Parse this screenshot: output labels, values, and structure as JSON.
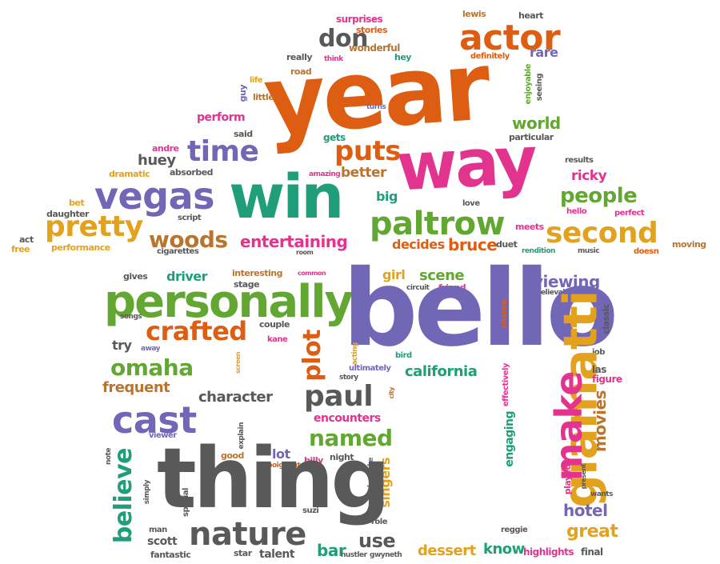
{
  "colors": {
    "orange": "#dd5e13",
    "magenta": "#e2348f",
    "teal": "#1f9e79",
    "purple": "#7266b6",
    "gold": "#e3a21e",
    "gray": "#595959",
    "green": "#62a732",
    "brown": "#b87530"
  },
  "words": {
    "year": "year",
    "bello": "bello",
    "thing": "thing",
    "way": "way",
    "win": "win",
    "personally": "personally",
    "vegas": "vegas",
    "actor": "actor",
    "paltrow": "paltrow",
    "second": "second",
    "giamatti": "giamatti",
    "paul": "paul",
    "cast": "cast",
    "pretty": "pretty",
    "crafted": "crafted",
    "nature": "nature",
    "believe": "believe",
    "time": "time",
    "puts": "puts",
    "woods": "woods",
    "people": "people",
    "named": "named",
    "omaha": "omaha",
    "plot": "plot",
    "make": "make",
    "don": "don",
    "entertaining": "entertaining",
    "viewing": "viewing",
    "california": "california",
    "character": "character",
    "scene": "scene",
    "world": "world",
    "movies": "movies",
    "frequent": "frequent",
    "hotel": "hotel",
    "great": "great",
    "bruce": "bruce",
    "huey": "huey",
    "better": "better",
    "engaging": "engaging",
    "driver": "driver",
    "girl": "girl",
    "use": "use",
    "bar": "bar",
    "dessert": "dessert",
    "know": "know",
    "encounters": "encounters",
    "singers": "singers",
    "lot": "lot",
    "decides": "decides",
    "big": "big",
    "perform": "perform",
    "highlights": "highlights",
    "ricky": "ricky",
    "scott": "scott",
    "fantastic": "fantastic",
    "talent": "talent",
    "star": "star",
    "hustler": "hustler",
    "gwyneth": "gwyneth",
    "final": "final",
    "reggie": "reggie",
    "wants": "wants",
    "played": "played",
    "present": "present",
    "surprises": "surprises",
    "stories": "stories",
    "wonderful": "wonderful",
    "hey": "hey",
    "really": "really",
    "think": "think",
    "road": "road",
    "lewis": "lewis",
    "heart": "heart",
    "definitely": "definitely",
    "rare": "rare",
    "enjoyable": "enjoyable",
    "seeing": "seeing",
    "life": "life",
    "guy": "guy",
    "little": "little",
    "turns": "turns",
    "said": "said",
    "gets": "gets",
    "particular": "particular",
    "andre": "andre",
    "dramatic": "dramatic",
    "absorbed": "absorbed",
    "amazing": "amazing",
    "results": "results",
    "bet": "bet",
    "daughter": "daughter",
    "script": "script",
    "love": "love",
    "hello": "hello",
    "perfect": "perfect",
    "act": "act",
    "free": "free",
    "performance": "performance",
    "cigarettes": "cigarettes",
    "room": "room",
    "duet": "duet",
    "meets": "meets",
    "rendition": "rendition",
    "music": "music",
    "doesn": "doesn",
    "moving": "moving",
    "gives": "gives",
    "interesting": "interesting",
    "stage": "stage",
    "common": "common",
    "circuit": "circuit",
    "friend": "friend",
    "believable": "believable",
    "songs": "songs",
    "couple": "couple",
    "chance": "chance",
    "classic": "classic",
    "job": "job",
    "try": "try",
    "away": "away",
    "kane": "kane",
    "acting": "acting",
    "bird": "bird",
    "screen": "screen",
    "ultimately": "ultimately",
    "story": "story",
    "effectively": "effectively",
    "las": "las",
    "figure": "figure",
    "city": "city",
    "explain": "explain",
    "viewer": "viewer",
    "note": "note",
    "good": "good",
    "poignant": "poignant",
    "billy": "billy",
    "night": "night",
    "karaoke": "karaoke",
    "simply": "simply",
    "special": "special",
    "suzi": "suzi",
    "role": "role",
    "man": "man"
  }
}
